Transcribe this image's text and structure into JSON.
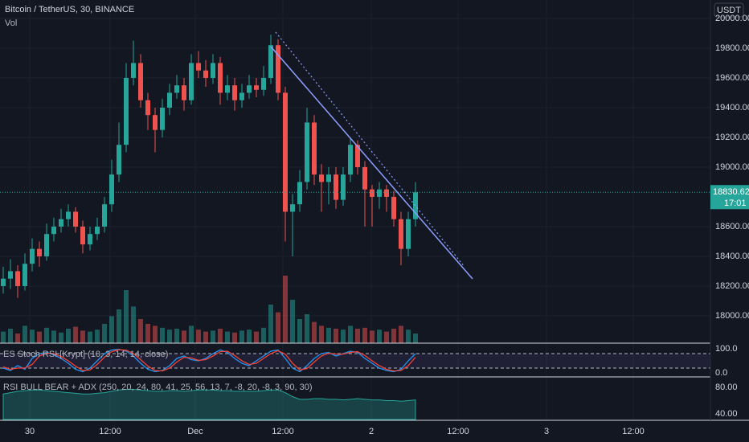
{
  "chart_data": [
    {
      "type": "candlestick",
      "title": "Bitcoin / TetherUS, 30, BINANCE",
      "subtitle": "Vol",
      "currency": "USDT",
      "up_color": "#26a69a",
      "down_color": "#ef5350",
      "ylim": [
        17816,
        20124
      ],
      "yticks": [
        {
          "value": 20000,
          "label": "20000.00"
        },
        {
          "value": 19800,
          "label": "19800.00"
        },
        {
          "value": 19600,
          "label": "19600.00"
        },
        {
          "value": 19400,
          "label": "19400.00"
        },
        {
          "value": 19200,
          "label": "19200.00"
        },
        {
          "value": 19000,
          "label": "19000.00"
        },
        {
          "value": 18600,
          "label": "18600.00"
        },
        {
          "value": 18400,
          "label": "18400.00"
        },
        {
          "value": 18200,
          "label": "18200.00"
        },
        {
          "value": 18000,
          "label": "18000.00"
        }
      ],
      "last_price": {
        "value": 18830.62,
        "label": "18830.62"
      },
      "countdown": "17:01",
      "x_labels": [
        "30",
        "12:00",
        "Dec",
        "12:00",
        "2",
        "12:00",
        "3",
        "12:00"
      ],
      "open": [
        18200,
        18250,
        18300,
        18200,
        18350,
        18450,
        18400,
        18550,
        18600,
        18650,
        18700,
        18600,
        18480,
        18550,
        18600,
        18750,
        18950,
        19150,
        19600,
        19700,
        19450,
        19350,
        19250,
        19400,
        19500,
        19550,
        19450,
        19700,
        19650,
        19600,
        19700,
        19500,
        19550,
        19450,
        19500,
        19550,
        19520,
        19600,
        19820,
        19500,
        18700,
        18750,
        18900,
        19300,
        18950,
        18900,
        18950,
        18780,
        18950,
        19150,
        19000,
        18850,
        18800,
        18850,
        18800,
        18650,
        18450,
        18650
      ],
      "high": [
        18330,
        18380,
        18340,
        18420,
        18520,
        18500,
        18620,
        18660,
        18720,
        18750,
        18730,
        18640,
        18600,
        18660,
        18800,
        19050,
        19300,
        19700,
        19850,
        19760,
        19500,
        19400,
        19460,
        19560,
        19620,
        19600,
        19760,
        19780,
        19720,
        19760,
        19740,
        19620,
        19600,
        19560,
        19620,
        19600,
        19680,
        19890,
        19860,
        19540,
        18820,
        18980,
        19400,
        19350,
        19020,
        19000,
        19000,
        19000,
        19200,
        19180,
        19040,
        18880,
        18900,
        18880,
        18840,
        18700,
        18700,
        18900
      ],
      "low": [
        18150,
        18180,
        18120,
        18170,
        18300,
        18330,
        18370,
        18500,
        18560,
        18600,
        18560,
        18420,
        18440,
        18510,
        18560,
        18700,
        18900,
        19100,
        19550,
        19400,
        19250,
        19100,
        19200,
        19350,
        19460,
        19380,
        19420,
        19600,
        19540,
        19560,
        19420,
        19450,
        19380,
        19400,
        19460,
        19470,
        19480,
        19560,
        19450,
        18500,
        18400,
        18700,
        18850,
        18880,
        18700,
        18750,
        18720,
        18740,
        18900,
        18950,
        18600,
        18600,
        18720,
        18700,
        18600,
        18340,
        18400,
        18600
      ],
      "close": [
        18250,
        18300,
        18200,
        18350,
        18450,
        18400,
        18550,
        18600,
        18650,
        18700,
        18600,
        18480,
        18550,
        18600,
        18750,
        18950,
        19150,
        19600,
        19700,
        19450,
        19350,
        19250,
        19400,
        19500,
        19550,
        19450,
        19700,
        19650,
        19600,
        19700,
        19500,
        19550,
        19450,
        19500,
        19550,
        19520,
        19600,
        19820,
        19500,
        18700,
        18750,
        18900,
        19300,
        18950,
        18900,
        18950,
        18780,
        18950,
        19150,
        19000,
        18850,
        18800,
        18850,
        18800,
        18650,
        18450,
        18650,
        18830.62
      ],
      "volumes": [
        1.2,
        1.5,
        1,
        1.8,
        1.4,
        1.2,
        1.6,
        1.3,
        1.1,
        1.5,
        1.7,
        1.3,
        1.2,
        1.4,
        2.0,
        2.8,
        3.5,
        5.5,
        3.8,
        2.5,
        2.0,
        1.8,
        1.6,
        1.4,
        1.5,
        1.3,
        1.8,
        1.4,
        1.2,
        1.3,
        1.5,
        1.2,
        1.1,
        1.3,
        1.4,
        1.2,
        1.6,
        4.0,
        3.2,
        7.0,
        4.5,
        2.5,
        3.0,
        2.2,
        1.8,
        1.6,
        1.5,
        1.4,
        1.8,
        1.5,
        1.6,
        1.3,
        1.4,
        1.2,
        1.5,
        1.8,
        1.4,
        1.0
      ]
    },
    {
      "type": "line",
      "title": "ES Stoch RSI [Krypt] (10, 3, 14, 14, close)",
      "ylim": [
        -13.3,
        120
      ],
      "yticks": [
        {
          "value": 100,
          "label": "100.0"
        },
        {
          "value": 0,
          "label": "0.0"
        }
      ],
      "bands": [
        80,
        20
      ],
      "series": [
        {
          "color": "#2196f3",
          "values": [
            20,
            10,
            30,
            15,
            60,
            80,
            85,
            75,
            60,
            40,
            15,
            5,
            20,
            50,
            80,
            95,
            98,
            90,
            70,
            40,
            15,
            5,
            10,
            30,
            60,
            70,
            55,
            50,
            60,
            80,
            95,
            85,
            60,
            40,
            30,
            50,
            70,
            90,
            95,
            60,
            20,
            5,
            30,
            60,
            80,
            85,
            70,
            80,
            90,
            85,
            60,
            40,
            20,
            10,
            5,
            15,
            50,
            80
          ]
        },
        {
          "color": "#f44336",
          "values": [
            25,
            15,
            20,
            20,
            35,
            70,
            82,
            80,
            68,
            50,
            28,
            10,
            12,
            35,
            65,
            88,
            96,
            94,
            80,
            55,
            28,
            10,
            8,
            20,
            45,
            65,
            62,
            52,
            55,
            70,
            88,
            90,
            72,
            50,
            35,
            40,
            60,
            80,
            92,
            78,
            40,
            12,
            18,
            45,
            70,
            82,
            78,
            78,
            85,
            88,
            72,
            50,
            30,
            15,
            8,
            10,
            30,
            65
          ]
        }
      ]
    },
    {
      "type": "area",
      "title": "RSI BULL BEAR + ADX (250, 20, 24, 80, 41, 25, 56, 13, 7, -8, 20, -8, 3, 90, 30)",
      "ylim": [
        31.5,
        94.5
      ],
      "yticks": [
        {
          "value": 80,
          "label": "80.00"
        },
        {
          "value": 40,
          "label": "40.00"
        }
      ],
      "color": "#26a69a",
      "values": [
        70,
        72,
        74,
        75,
        76,
        76,
        75,
        74,
        73,
        72,
        71,
        70,
        70,
        71,
        72,
        74,
        76,
        77,
        77,
        76,
        75,
        74,
        74,
        75,
        75,
        74,
        75,
        76,
        76,
        76,
        75,
        75,
        74,
        74,
        74,
        74,
        75,
        76,
        76,
        72,
        66,
        62,
        62,
        63,
        63,
        62,
        62,
        61,
        62,
        63,
        62,
        61,
        61,
        60,
        60,
        59,
        60,
        61
      ]
    }
  ]
}
